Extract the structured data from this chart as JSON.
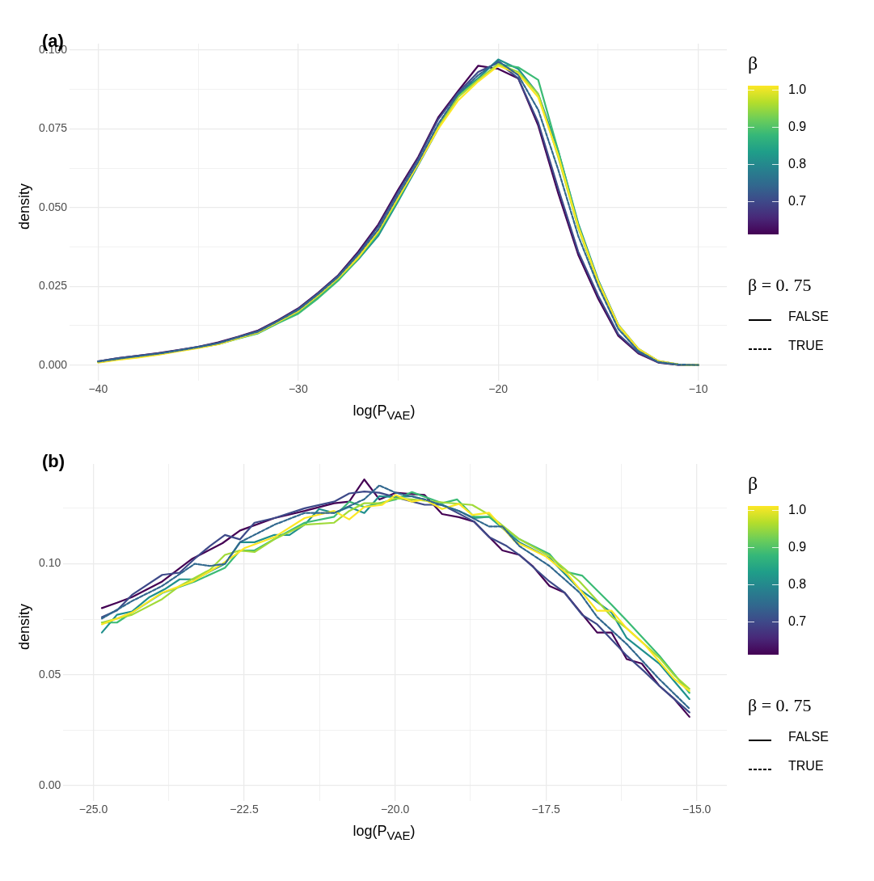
{
  "chart_data": [
    {
      "type": "line",
      "title": "(a)",
      "xlabel": "log(P$_{VAE}$)",
      "ylabel": "density",
      "clabel": "β",
      "legend_title": "β = 0. 75",
      "annotations": [
        "FALSE",
        "TRUE"
      ],
      "clim": [
        0.61,
        1.01
      ],
      "cticks": [
        0.7,
        0.8,
        0.9,
        {
          "value": 1,
          "label": "1.0"
        }
      ],
      "grid": true,
      "marker": "none",
      "line_style": "solid",
      "xlim": [
        -41.43,
        -8.57
      ],
      "xticks": [
        {
          "value": -40,
          "label": "−40"
        },
        {
          "value": -35,
          "label": null
        },
        {
          "value": -30,
          "label": "−30"
        },
        {
          "value": -25,
          "label": null
        },
        {
          "value": -20,
          "label": "−20"
        },
        {
          "value": -15,
          "label": null
        },
        {
          "value": -10,
          "label": "−10"
        }
      ],
      "ylim": [
        -0.005,
        0.102
      ],
      "yticks": [
        {
          "value": 0,
          "label": "0.000"
        },
        {
          "value": 0.0125,
          "label": null
        },
        {
          "value": 0.025,
          "label": "0.025"
        },
        {
          "value": 0.0375,
          "label": null
        },
        {
          "value": 0.05,
          "label": "0.050"
        },
        {
          "value": 0.0625,
          "label": null
        },
        {
          "value": 0.075,
          "label": "0.075"
        },
        {
          "value": 0.0875,
          "label": null
        },
        {
          "value": 0.1,
          "label": "0.100"
        }
      ],
      "x": [
        -40,
        -39,
        -38,
        -37,
        -36,
        -35,
        -34,
        -33,
        -32,
        -31,
        -30,
        -29,
        -28,
        -27,
        -26,
        -25,
        -24,
        -23,
        -22,
        -21,
        -20,
        -19,
        -18,
        -17,
        -16,
        -15,
        -14,
        -13,
        -12,
        -11,
        -10
      ],
      "series": [
        {
          "color": "#440154",
          "values": [
            0.0012,
            0.0022,
            0.003,
            0.0038,
            0.0048,
            0.0058,
            0.0072,
            0.009,
            0.011,
            0.0143,
            0.018,
            0.023,
            0.0285,
            0.036,
            0.0446,
            0.0557,
            0.066,
            0.0786,
            0.087,
            0.095,
            0.094,
            0.091,
            0.076,
            0.0545,
            0.035,
            0.021,
            0.0093,
            0.0037,
            0.0008,
            0.0001,
            0
          ]
        },
        {
          "color": "#3e4a89",
          "values": [
            0.0012,
            0.0022,
            0.003,
            0.0037,
            0.0047,
            0.0058,
            0.007,
            0.0089,
            0.0108,
            0.0141,
            0.0178,
            0.0228,
            0.0283,
            0.0355,
            0.044,
            0.055,
            0.0655,
            0.078,
            0.0865,
            0.093,
            0.096,
            0.091,
            0.077,
            0.056,
            0.036,
            0.022,
            0.0098,
            0.004,
            0.0009,
            0.0001,
            0
          ]
        },
        {
          "color": "#31688e",
          "line_style": "dashed",
          "values": [
            0.0011,
            0.002,
            0.0028,
            0.0036,
            0.0046,
            0.0057,
            0.0069,
            0.0088,
            0.0106,
            0.014,
            0.0175,
            0.0225,
            0.028,
            0.035,
            0.043,
            0.054,
            0.0645,
            0.0765,
            0.086,
            0.092,
            0.0965,
            0.092,
            0.081,
            0.062,
            0.041,
            0.025,
            0.0115,
            0.0045,
            0.001,
            0.0002,
            0
          ]
        },
        {
          "color": "#21908d",
          "values": [
            0.001,
            0.0019,
            0.0026,
            0.0034,
            0.0045,
            0.0055,
            0.0067,
            0.0085,
            0.0102,
            0.0135,
            0.0165,
            0.0215,
            0.027,
            0.0335,
            0.041,
            0.052,
            0.0635,
            0.075,
            0.086,
            0.091,
            0.097,
            0.094,
            0.086,
            0.068,
            0.045,
            0.027,
            0.0128,
            0.0052,
            0.0013,
            0.0002,
            0
          ]
        },
        {
          "color": "#3bbb75",
          "values": [
            null,
            null,
            null,
            null,
            null,
            null,
            0.0066,
            0.0084,
            0.0101,
            0.0133,
            0.0163,
            0.0212,
            0.0268,
            0.0338,
            0.0418,
            0.0525,
            0.064,
            0.0755,
            0.0855,
            0.0905,
            0.0955,
            0.0945,
            0.0905,
            0.068,
            0.0445,
            0.0265,
            0.0126,
            0.0051,
            0.0013,
            null,
            null
          ]
        },
        {
          "color": "#a0da39",
          "values": [
            0.0009,
            0.0018,
            0.0025,
            0.0034,
            0.0045,
            0.0055,
            0.0067,
            0.0086,
            0.0104,
            0.0138,
            0.017,
            0.022,
            0.0275,
            0.034,
            0.0422,
            0.053,
            0.064,
            0.0755,
            0.085,
            0.0905,
            0.0955,
            0.093,
            0.086,
            0.066,
            0.0435,
            0.026,
            0.0124,
            0.005,
            0.0012,
            0.0002,
            0
          ]
        },
        {
          "color": "#fde725",
          "values": [
            0.0008,
            0.0017,
            0.0024,
            0.0033,
            0.0044,
            0.0054,
            0.0066,
            0.0085,
            0.0103,
            0.0137,
            0.0172,
            0.0222,
            0.0277,
            0.0343,
            0.0425,
            0.0532,
            0.0638,
            0.075,
            0.084,
            0.09,
            0.095,
            0.0925,
            0.085,
            0.0665,
            0.044,
            0.0265,
            0.0127,
            0.0052,
            0.0013,
            0.0002,
            0
          ]
        }
      ]
    },
    {
      "type": "line",
      "title": "(b)",
      "xlabel": "log(P$_{VAE}$)",
      "ylabel": "density",
      "clabel": "β",
      "legend_title": "β = 0. 75",
      "annotations": [
        "FALSE",
        "TRUE"
      ],
      "clim": [
        0.61,
        1.01
      ],
      "cticks": [
        0.7,
        0.8,
        0.9,
        {
          "value": 1,
          "label": "1.0"
        }
      ],
      "grid": true,
      "marker": "none",
      "line_style": "solid",
      "xlim": [
        -25.5,
        -14.5
      ],
      "xticks": [
        {
          "value": -25,
          "label": "−25.0"
        },
        {
          "value": -23.75,
          "label": null
        },
        {
          "value": -22.5,
          "label": "−22.5"
        },
        {
          "value": -21.25,
          "label": null
        },
        {
          "value": -20,
          "label": "−20.0"
        },
        {
          "value": -18.75,
          "label": null
        },
        {
          "value": -17.5,
          "label": "−17.5"
        },
        {
          "value": -16.25,
          "label": null
        },
        {
          "value": -15,
          "label": "−15.0"
        }
      ],
      "ylim": [
        -0.007,
        0.145
      ],
      "yticks": [
        {
          "value": 0,
          "label": "0.00"
        },
        {
          "value": 0.025,
          "label": null
        },
        {
          "value": 0.05,
          "label": "0.05"
        },
        {
          "value": 0.075,
          "label": null
        },
        {
          "value": 0.1,
          "label": "0.10"
        },
        {
          "value": 0.125,
          "label": null
        }
      ],
      "series": [
        {
          "color": "#440154",
          "x": [
            -24.86,
            -24.61,
            -24.36,
            -23.86,
            -23.36,
            -22.86,
            -22.57,
            -22.0,
            -21.5,
            -21.01,
            -20.76,
            -20.51,
            -20.26,
            -19.99,
            -19.51,
            -19.22,
            -18.94,
            -18.69,
            -18.22,
            -17.94,
            -17.72,
            -17.44,
            -17.19,
            -16.65,
            -16.41,
            -16.16,
            -15.91,
            -15.62,
            -15.37,
            -15.12
          ],
          "values": [
            0.08,
            0.0824,
            0.085,
            0.092,
            0.1023,
            0.1093,
            0.115,
            0.1206,
            0.1238,
            0.1273,
            0.128,
            0.138,
            0.129,
            0.132,
            0.131,
            0.1224,
            0.121,
            0.119,
            0.106,
            0.104,
            0.099,
            0.09,
            0.087,
            0.069,
            0.069,
            0.057,
            0.055,
            0.045,
            0.039,
            0.031
          ]
        },
        {
          "color": "#3e4a89",
          "x": [
            -24.86,
            -24.61,
            -24.36,
            -23.86,
            -23.57,
            -23.32,
            -23.07,
            -22.82,
            -22.57,
            -22.33,
            -22.0,
            -21.5,
            -21.01,
            -20.76,
            -20.51,
            -20.26,
            -19.99,
            -19.51,
            -19.22,
            -18.69,
            -18.44,
            -18.15,
            -17.94,
            -17.44,
            -17.19,
            -16.9,
            -16.65,
            -16.16,
            -15.87,
            -15.62,
            -15.37,
            -15.12
          ],
          "values": [
            0.076,
            0.079,
            0.086,
            0.095,
            0.096,
            0.1023,
            0.108,
            0.113,
            0.111,
            0.1185,
            0.1206,
            0.125,
            0.128,
            0.1317,
            0.1326,
            0.132,
            0.13,
            0.1266,
            0.1266,
            0.119,
            0.112,
            0.108,
            0.104,
            0.092,
            0.087,
            0.077,
            0.0727,
            0.0586,
            0.0515,
            0.045,
            0.039,
            0.033
          ]
        },
        {
          "color": "#31688e",
          "line_style": "dashed",
          "x": [
            -24.86,
            -24.36,
            -23.86,
            -23.32,
            -23.07,
            -22.82,
            -22.57,
            -22.0,
            -21.5,
            -21.01,
            -20.51,
            -20.26,
            -19.99,
            -19.51,
            -18.94,
            -18.44,
            -18.22,
            -17.94,
            -17.44,
            -16.94,
            -16.65,
            -16.16,
            -15.62,
            -15.12
          ],
          "values": [
            0.0753,
            0.0832,
            0.09,
            0.1,
            0.099,
            0.1,
            0.1097,
            0.1176,
            0.1229,
            0.1229,
            0.1291,
            0.1353,
            0.132,
            0.129,
            0.1238,
            0.1168,
            0.1168,
            0.108,
            0.099,
            0.087,
            0.076,
            0.0638,
            0.048,
            0.0347
          ]
        },
        {
          "color": "#21908d",
          "x": [
            -24.86,
            -24.61,
            -24.36,
            -24.07,
            -23.82,
            -23.57,
            -23.32,
            -23.07,
            -22.82,
            -22.57,
            -22.33,
            -22.0,
            -21.75,
            -21.5,
            -21.26,
            -21.01,
            -20.76,
            -20.51,
            -20.26,
            -19.99,
            -19.72,
            -19.22,
            -18.94,
            -18.69,
            -18.44,
            -17.94,
            -17.44,
            -16.94,
            -16.41,
            -16.16,
            -15.62,
            -15.12
          ],
          "values": [
            0.069,
            0.077,
            0.0785,
            0.085,
            0.0885,
            0.093,
            0.093,
            0.0965,
            0.1,
            0.1097,
            0.1097,
            0.113,
            0.113,
            0.1176,
            0.1247,
            0.1229,
            0.1256,
            0.1229,
            0.1305,
            0.13,
            0.1305,
            0.1265,
            0.1238,
            0.1206,
            0.1212,
            0.1097,
            0.1026,
            0.0885,
            0.078,
            0.0665,
            0.055,
            0.039
          ]
        },
        {
          "color": "#3bbb75",
          "x": [
            -24.86,
            -24.61,
            -24.36,
            -23.86,
            -23.32,
            -22.82,
            -22.57,
            -22.33,
            -22.0,
            -21.5,
            -21.01,
            -20.76,
            -20.51,
            -20.26,
            -19.99,
            -19.72,
            -19.22,
            -18.97,
            -18.69,
            -18.44,
            -17.94,
            -17.44,
            -17.19,
            -16.9,
            -16.41,
            -16.16,
            -15.62,
            -15.12
          ],
          "values": [
            0.0735,
            0.0735,
            0.078,
            0.0868,
            0.092,
            0.0982,
            0.106,
            0.106,
            0.1111,
            0.1185,
            0.1212,
            0.128,
            0.1256,
            0.1273,
            0.129,
            0.1323,
            0.1273,
            0.129,
            0.1212,
            0.1212,
            0.1111,
            0.1044,
            0.0965,
            0.0947,
            0.0815,
            0.0744,
            0.0586,
            0.0418
          ]
        },
        {
          "color": "#a0da39",
          "x": [
            -24.86,
            -24.36,
            -23.86,
            -23.57,
            -23.07,
            -22.82,
            -22.57,
            -22.33,
            -22.0,
            -21.5,
            -21.01,
            -20.76,
            -20.51,
            -20.22,
            -19.99,
            -19.72,
            -19.22,
            -18.72,
            -18.44,
            -17.94,
            -17.44,
            -16.94,
            -16.41,
            -16.16,
            -15.62,
            -15.37,
            -15.12
          ],
          "values": [
            0.0735,
            0.077,
            0.0841,
            0.09,
            0.0973,
            0.104,
            0.106,
            0.1053,
            0.1111,
            0.1176,
            0.1185,
            0.1238,
            0.1273,
            0.1273,
            0.1295,
            0.129,
            0.1277,
            0.1265,
            0.1221,
            0.1111,
            0.1035,
            0.092,
            0.0762,
            0.0709,
            0.0577,
            0.0497,
            0.0436
          ]
        },
        {
          "color": "#fde725",
          "x": [
            -24.86,
            -24.36,
            -23.86,
            -23.36,
            -22.86,
            -22.5,
            -22.0,
            -21.5,
            -21.01,
            -20.76,
            -20.51,
            -20.22,
            -19.99,
            -19.72,
            -19.51,
            -19.22,
            -18.94,
            -18.72,
            -18.44,
            -18.01,
            -17.51,
            -17.15,
            -16.65,
            -16.41,
            -16.16,
            -15.87,
            -15.37,
            -15.12
          ],
          "values": [
            0.0727,
            0.078,
            0.087,
            0.092,
            0.1,
            0.107,
            0.112,
            0.1206,
            0.1238,
            0.12,
            0.1256,
            0.1265,
            0.131,
            0.128,
            0.129,
            0.1247,
            0.127,
            0.122,
            0.123,
            0.11,
            0.1035,
            0.0956,
            0.0788,
            0.0788,
            0.0709,
            0.0638,
            0.048,
            0.0427
          ]
        }
      ]
    }
  ]
}
